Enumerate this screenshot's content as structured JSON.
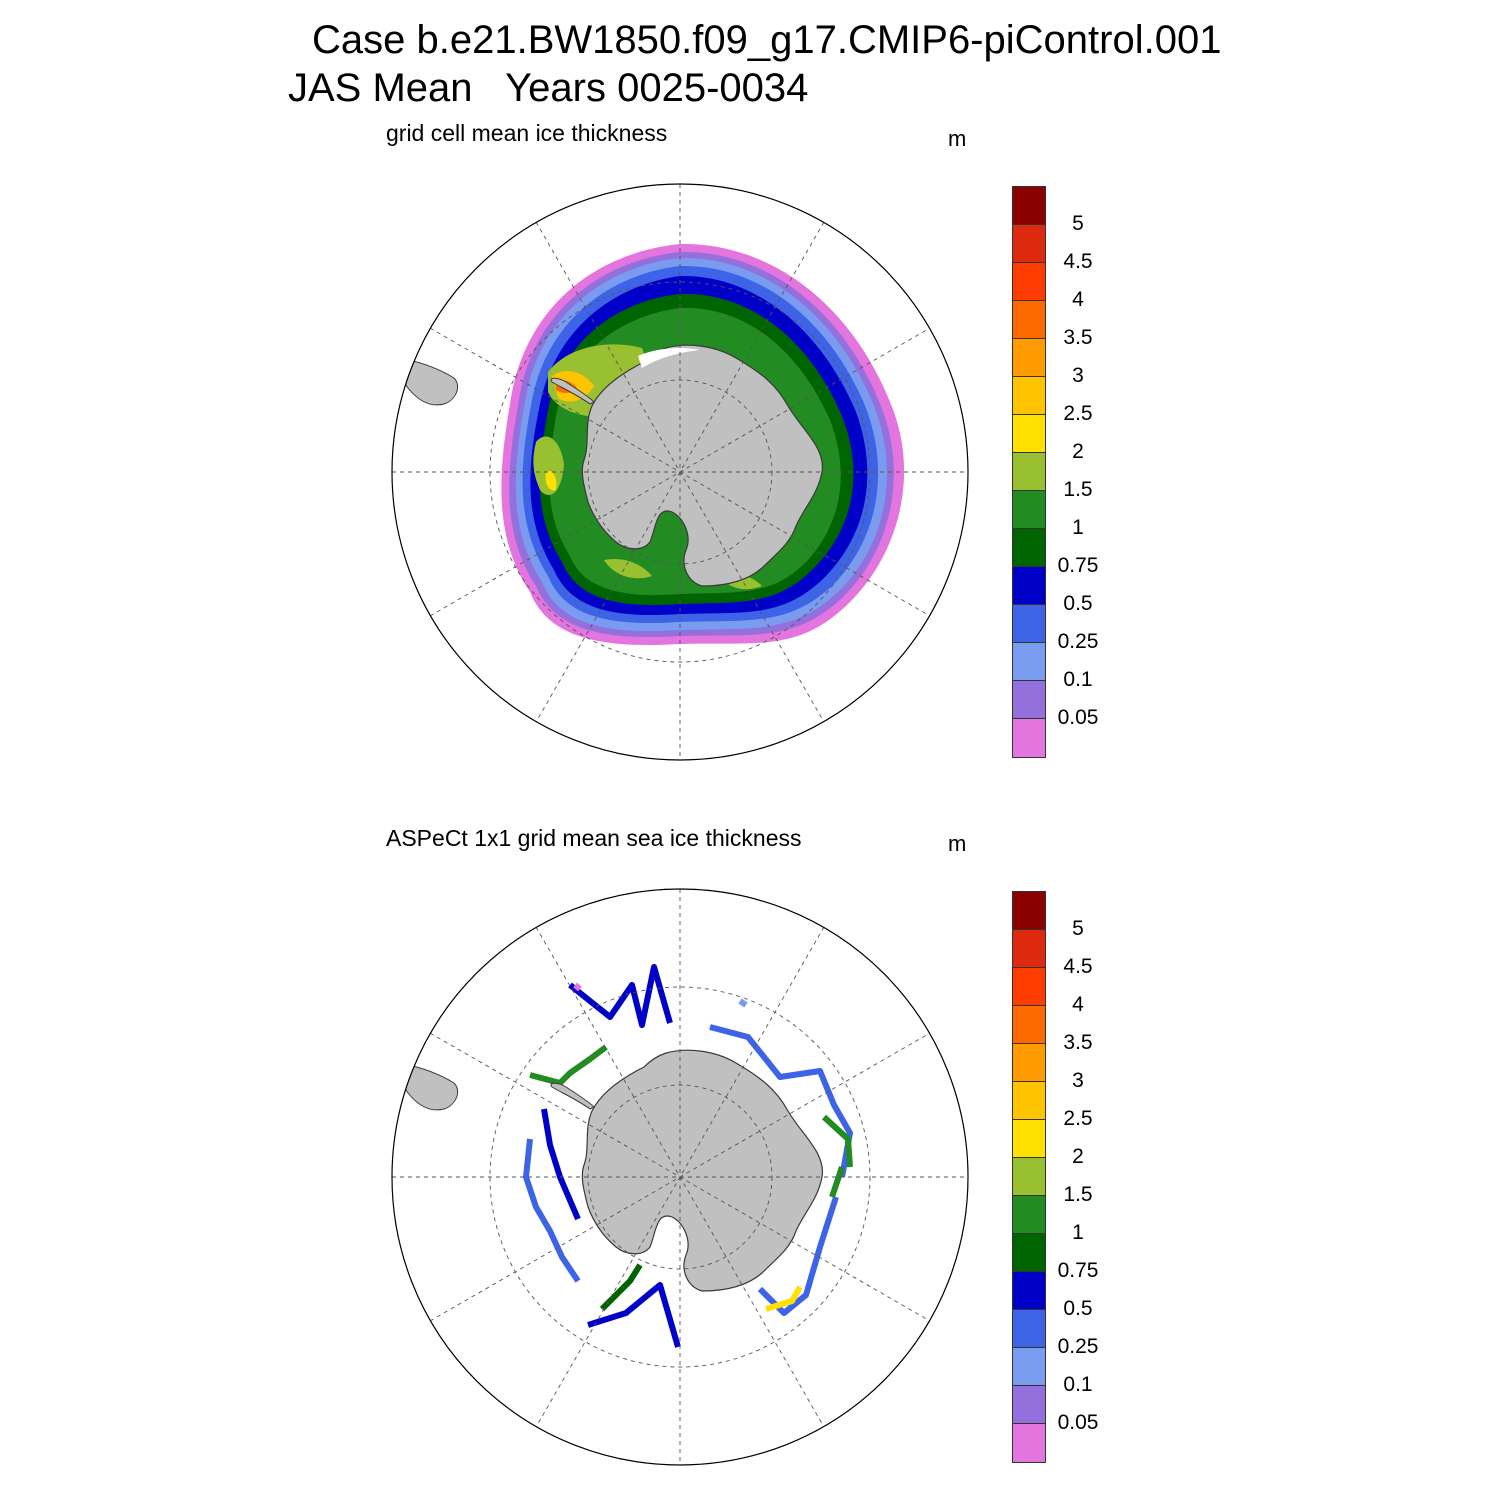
{
  "header": {
    "case_line": "Case b.e21.BW1850.f09_g17.CMIP6-piControl.001",
    "period_line": "JAS Mean   Years 0025-0034"
  },
  "panels": [
    {
      "title": "grid cell mean ice thickness",
      "unit": "m"
    },
    {
      "title": "ASPeCt 1x1 grid mean sea ice thickness",
      "unit": "m"
    }
  ],
  "colorbar": {
    "levels": [
      "5",
      "4.5",
      "4",
      "3.5",
      "3",
      "2.5",
      "2",
      "1.5",
      "1",
      "0.75",
      "0.5",
      "0.25",
      "0.1",
      "0.05"
    ],
    "colors": [
      "#8b0000",
      "#dd2a0f",
      "#ff3c00",
      "#ff6a00",
      "#ff9a00",
      "#ffc400",
      "#ffe000",
      "#99c030",
      "#228b22",
      "#006400",
      "#0000c8",
      "#3d64e6",
      "#7a9cf0",
      "#9370db",
      "#e474de"
    ]
  },
  "map_colors": {
    "land": "#c0c0c0",
    "coast": "#3a3a3a",
    "grid": "#555555"
  },
  "icons": [
    "south-polar-stereographic-map",
    "antarctica-landmass",
    "south-america-tip"
  ]
}
